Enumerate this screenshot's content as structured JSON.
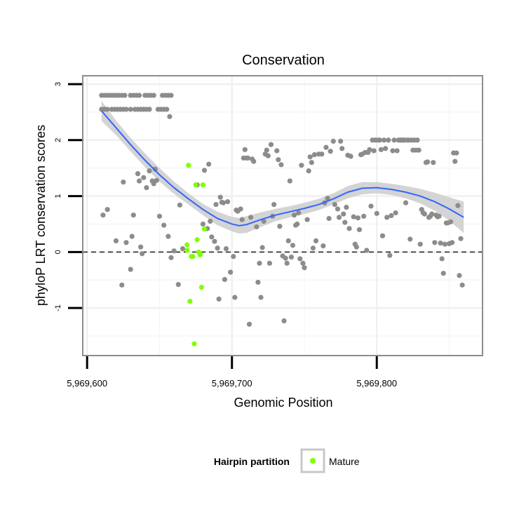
{
  "chart_data": {
    "type": "scatter",
    "title": "Conservation",
    "xlabel": "Genomic Position",
    "ylabel": "phyloP LRT conservation scores",
    "xlim": [
      5969597,
      5969873
    ],
    "ylim": [
      -1.85,
      3.15
    ],
    "x_ticks": [
      5969600,
      5969700,
      5969800
    ],
    "x_tick_labels": [
      "5,969,600",
      "5,969,700",
      "5,969,800"
    ],
    "y_ticks": [
      3,
      2,
      1,
      0,
      -1
    ],
    "y_tick_labels": [
      "3",
      "2",
      "1",
      "0",
      "-1"
    ],
    "reference_line": {
      "y": 0,
      "style": "dashed"
    },
    "grid": true,
    "legend": {
      "position": "bottom",
      "title": "Hairpin partition",
      "entries": [
        {
          "label": "Mature",
          "color": "#7FFF00"
        }
      ]
    },
    "colors": {
      "points": "#8C8C8C",
      "mature": "#7FFF00",
      "smooth_line": "#3366FF",
      "smooth_band": "#CCCCCC"
    },
    "series": [
      {
        "name": "",
        "color": "#8C8C8C",
        "points": [
          [
            5969610,
            2.8
          ],
          [
            5969612,
            2.8
          ],
          [
            5969614,
            2.8
          ],
          [
            5969616,
            2.8
          ],
          [
            5969618,
            2.8
          ],
          [
            5969620,
            2.8
          ],
          [
            5969622,
            2.8
          ],
          [
            5969624,
            2.8
          ],
          [
            5969626,
            2.8
          ],
          [
            5969630,
            2.8
          ],
          [
            5969632,
            2.8
          ],
          [
            5969634,
            2.8
          ],
          [
            5969636,
            2.8
          ],
          [
            5969640,
            2.8
          ],
          [
            5969642,
            2.8
          ],
          [
            5969644,
            2.8
          ],
          [
            5969646,
            2.8
          ],
          [
            5969652,
            2.8
          ],
          [
            5969654,
            2.8
          ],
          [
            5969656,
            2.8
          ],
          [
            5969658,
            2.8
          ],
          [
            5969610,
            2.55
          ],
          [
            5969612,
            2.55
          ],
          [
            5969614,
            2.55
          ],
          [
            5969617,
            2.55
          ],
          [
            5969619,
            2.55
          ],
          [
            5969621,
            2.55
          ],
          [
            5969623,
            2.55
          ],
          [
            5969625,
            2.55
          ],
          [
            5969627,
            2.55
          ],
          [
            5969630,
            2.55
          ],
          [
            5969633,
            2.55
          ],
          [
            5969635,
            2.55
          ],
          [
            5969637,
            2.55
          ],
          [
            5969639,
            2.55
          ],
          [
            5969641,
            2.55
          ],
          [
            5969643,
            2.55
          ],
          [
            5969649,
            2.55
          ],
          [
            5969651,
            2.55
          ],
          [
            5969653,
            2.55
          ],
          [
            5969655,
            2.55
          ],
          [
            5969657,
            2.42
          ],
          [
            5969611,
            0.66
          ],
          [
            5969614,
            0.76
          ],
          [
            5969620,
            0.2
          ],
          [
            5969624,
            -0.59
          ],
          [
            5969625,
            1.25
          ],
          [
            5969627,
            0.17
          ],
          [
            5969630,
            -0.31
          ],
          [
            5969631,
            0.28
          ],
          [
            5969632,
            0.66
          ],
          [
            5969635,
            1.4
          ],
          [
            5969636,
            1.27
          ],
          [
            5969637,
            0.09
          ],
          [
            5969638,
            -0.03
          ],
          [
            5969639,
            1.33
          ],
          [
            5969641,
            1.15
          ],
          [
            5969643,
            1.45
          ],
          [
            5969645,
            1.27
          ],
          [
            5969646,
            1.22
          ],
          [
            5969647,
            1.48
          ],
          [
            5969648,
            1.28
          ],
          [
            5969650,
            0.64
          ],
          [
            5969653,
            0.48
          ],
          [
            5969656,
            0.28
          ],
          [
            5969658,
            -0.1
          ],
          [
            5969660,
            0.02
          ],
          [
            5969663,
            -0.58
          ],
          [
            5969664,
            0.84
          ],
          [
            5969666,
            0.06
          ],
          [
            5969676,
            1.2
          ],
          [
            5969680,
            0.5
          ],
          [
            5969681,
            1.46
          ],
          [
            5969683,
            0.42
          ],
          [
            5969684,
            1.57
          ],
          [
            5969685,
            0.55
          ],
          [
            5969686,
            0.27
          ],
          [
            5969688,
            0.19
          ],
          [
            5969689,
            0.85
          ],
          [
            5969690,
            0.07
          ],
          [
            5969691,
            -0.84
          ],
          [
            5969692,
            0.98
          ],
          [
            5969693,
            0.89
          ],
          [
            5969694,
            0.88
          ],
          [
            5969695,
            -0.49
          ],
          [
            5969696,
            0.06
          ],
          [
            5969697,
            0.9
          ],
          [
            5969699,
            -0.36
          ],
          [
            5969701,
            -0.08
          ],
          [
            5969702,
            -0.81
          ],
          [
            5969703,
            0.75
          ],
          [
            5969704,
            0.73
          ],
          [
            5969706,
            0.77
          ],
          [
            5969707,
            0.58
          ],
          [
            5969708,
            1.68
          ],
          [
            5969709,
            1.83
          ],
          [
            5969710,
            1.68
          ],
          [
            5969711,
            1.68
          ],
          [
            5969712,
            -1.29
          ],
          [
            5969713,
            0.62
          ],
          [
            5969714,
            1.66
          ],
          [
            5969715,
            1.62
          ],
          [
            5969717,
            0.45
          ],
          [
            5969718,
            -0.54
          ],
          [
            5969719,
            -0.2
          ],
          [
            5969720,
            -0.81
          ],
          [
            5969721,
            0.08
          ],
          [
            5969722,
            0.55
          ],
          [
            5969723,
            1.75
          ],
          [
            5969724,
            1.82
          ],
          [
            5969725,
            1.72
          ],
          [
            5969726,
            -0.2
          ],
          [
            5969727,
            1.92
          ],
          [
            5969728,
            0.64
          ],
          [
            5969729,
            0.85
          ],
          [
            5969731,
            1.81
          ],
          [
            5969732,
            1.65
          ],
          [
            5969733,
            0.46
          ],
          [
            5969734,
            1.56
          ],
          [
            5969735,
            -0.07
          ],
          [
            5969736,
            -1.23
          ],
          [
            5969737,
            -0.11
          ],
          [
            5969738,
            -0.2
          ],
          [
            5969739,
            0.2
          ],
          [
            5969740,
            1.27
          ],
          [
            5969741,
            -0.09
          ],
          [
            5969742,
            0.12
          ],
          [
            5969743,
            0.66
          ],
          [
            5969744,
            0.48
          ],
          [
            5969745,
            0.5
          ],
          [
            5969746,
            0.7
          ],
          [
            5969747,
            -0.12
          ],
          [
            5969748,
            1.55
          ],
          [
            5969749,
            -0.2
          ],
          [
            5969750,
            -0.28
          ],
          [
            5969752,
            0.58
          ],
          [
            5969753,
            1.45
          ],
          [
            5969754,
            1.7
          ],
          [
            5969755,
            1.6
          ],
          [
            5969756,
            0.07
          ],
          [
            5969757,
            1.74
          ],
          [
            5969758,
            0.2
          ],
          [
            5969760,
            1.75
          ],
          [
            5969762,
            1.75
          ],
          [
            5969763,
            0.11
          ],
          [
            5969764,
            0.88
          ],
          [
            5969765,
            1.87
          ],
          [
            5969766,
            0.96
          ],
          [
            5969767,
            0.6
          ],
          [
            5969768,
            1.8
          ],
          [
            5969770,
            1.98
          ],
          [
            5969771,
            0.85
          ],
          [
            5969773,
            0.77
          ],
          [
            5969774,
            0.62
          ],
          [
            5969775,
            1.98
          ],
          [
            5969776,
            1.85
          ],
          [
            5969777,
            0.68
          ],
          [
            5969778,
            0.53
          ],
          [
            5969779,
            0.8
          ],
          [
            5969780,
            1.73
          ],
          [
            5969781,
            0.42
          ],
          [
            5969782,
            1.71
          ],
          [
            5969784,
            0.63
          ],
          [
            5969785,
            0.14
          ],
          [
            5969786,
            0.09
          ],
          [
            5969787,
            0.61
          ],
          [
            5969788,
            0.4
          ],
          [
            5969789,
            1.74
          ],
          [
            5969790,
            1.75
          ],
          [
            5969791,
            0.64
          ],
          [
            5969792,
            1.78
          ],
          [
            5969793,
            0.03
          ],
          [
            5969794,
            1.78
          ],
          [
            5969795,
            1.83
          ],
          [
            5969796,
            0.82
          ],
          [
            5969797,
            2.0
          ],
          [
            5969798,
            1.81
          ],
          [
            5969799,
            2.0
          ],
          [
            5969800,
            0.69
          ],
          [
            5969801,
            2.0
          ],
          [
            5969802,
            2.0
          ],
          [
            5969803,
            1.83
          ],
          [
            5969804,
            0.29
          ],
          [
            5969805,
            2.0
          ],
          [
            5969806,
            1.85
          ],
          [
            5969807,
            0.62
          ],
          [
            5969808,
            2.0
          ],
          [
            5969809,
            -0.06
          ],
          [
            5969810,
            0.65
          ],
          [
            5969811,
            1.81
          ],
          [
            5969812,
            2.0
          ],
          [
            5969813,
            0.7
          ],
          [
            5969814,
            1.81
          ],
          [
            5969815,
            2.0
          ],
          [
            5969816,
            2.0
          ],
          [
            5969817,
            2.0
          ],
          [
            5969818,
            2.0
          ],
          [
            5969819,
            2.0
          ],
          [
            5969820,
            0.88
          ],
          [
            5969821,
            2.0
          ],
          [
            5969822,
            2.0
          ],
          [
            5969823,
            0.23
          ],
          [
            5969824,
            2.0
          ],
          [
            5969825,
            1.82
          ],
          [
            5969826,
            2.0
          ],
          [
            5969827,
            1.82
          ],
          [
            5969828,
            2.0
          ],
          [
            5969829,
            1.82
          ],
          [
            5969830,
            0.14
          ],
          [
            5969831,
            0.76
          ],
          [
            5969832,
            0.7
          ],
          [
            5969833,
            0.68
          ],
          [
            5969834,
            1.6
          ],
          [
            5969835,
            1.61
          ],
          [
            5969836,
            0.62
          ],
          [
            5969837,
            0.64
          ],
          [
            5969838,
            0.68
          ],
          [
            5969839,
            1.6
          ],
          [
            5969840,
            0.17
          ],
          [
            5969841,
            0.66
          ],
          [
            5969842,
            0.63
          ],
          [
            5969843,
            0.64
          ],
          [
            5969844,
            0.16
          ],
          [
            5969845,
            -0.12
          ],
          [
            5969846,
            -0.38
          ],
          [
            5969847,
            0.14
          ],
          [
            5969848,
            0.52
          ],
          [
            5969849,
            0.52
          ],
          [
            5969850,
            0.15
          ],
          [
            5969851,
            0.54
          ],
          [
            5969852,
            0.17
          ],
          [
            5969853,
            1.77
          ],
          [
            5969854,
            1.62
          ],
          [
            5969855,
            1.77
          ],
          [
            5969856,
            0.83
          ],
          [
            5969857,
            -0.42
          ],
          [
            5969858,
            0.24
          ],
          [
            5969859,
            -0.59
          ]
        ]
      },
      {
        "name": "Mature",
        "color": "#7FFF00",
        "points": [
          [
            5969669,
            0.03
          ],
          [
            5969669,
            0.13
          ],
          [
            5969670,
            1.55
          ],
          [
            5969671,
            -0.88
          ],
          [
            5969672,
            -0.08
          ],
          [
            5969673,
            -0.08
          ],
          [
            5969674,
            -1.64
          ],
          [
            5969675,
            1.2
          ],
          [
            5969676,
            0.22
          ],
          [
            5969677,
            0.0
          ],
          [
            5969678,
            -0.05
          ],
          [
            5969678,
            -0.03
          ],
          [
            5969679,
            -0.63
          ],
          [
            5969680,
            1.2
          ],
          [
            5969681,
            0.41
          ]
        ]
      }
    ],
    "smooth": {
      "x": [
        5969610,
        5969620,
        5969630,
        5969640,
        5969650,
        5969660,
        5969670,
        5969680,
        5969690,
        5969700,
        5969705,
        5969710,
        5969720,
        5969730,
        5969740,
        5969750,
        5969760,
        5969770,
        5969780,
        5969790,
        5969800,
        5969810,
        5969820,
        5969830,
        5969840,
        5969850,
        5969860
      ],
      "y": [
        2.52,
        2.22,
        1.92,
        1.64,
        1.38,
        1.15,
        0.95,
        0.76,
        0.6,
        0.5,
        0.47,
        0.49,
        0.58,
        0.66,
        0.72,
        0.78,
        0.85,
        0.95,
        1.07,
        1.14,
        1.15,
        1.12,
        1.07,
        1.0,
        0.9,
        0.77,
        0.62
      ],
      "lower": [
        2.34,
        2.09,
        1.8,
        1.52,
        1.26,
        1.04,
        0.85,
        0.66,
        0.48,
        0.37,
        0.33,
        0.34,
        0.45,
        0.55,
        0.62,
        0.68,
        0.75,
        0.85,
        0.96,
        1.03,
        1.05,
        1.02,
        0.96,
        0.87,
        0.74,
        0.56,
        0.34
      ],
      "upper": [
        2.7,
        2.35,
        2.04,
        1.76,
        1.5,
        1.26,
        1.05,
        0.86,
        0.72,
        0.63,
        0.61,
        0.64,
        0.71,
        0.77,
        0.82,
        0.88,
        0.95,
        1.05,
        1.18,
        1.25,
        1.25,
        1.22,
        1.18,
        1.13,
        1.06,
        0.98,
        0.9
      ]
    }
  }
}
